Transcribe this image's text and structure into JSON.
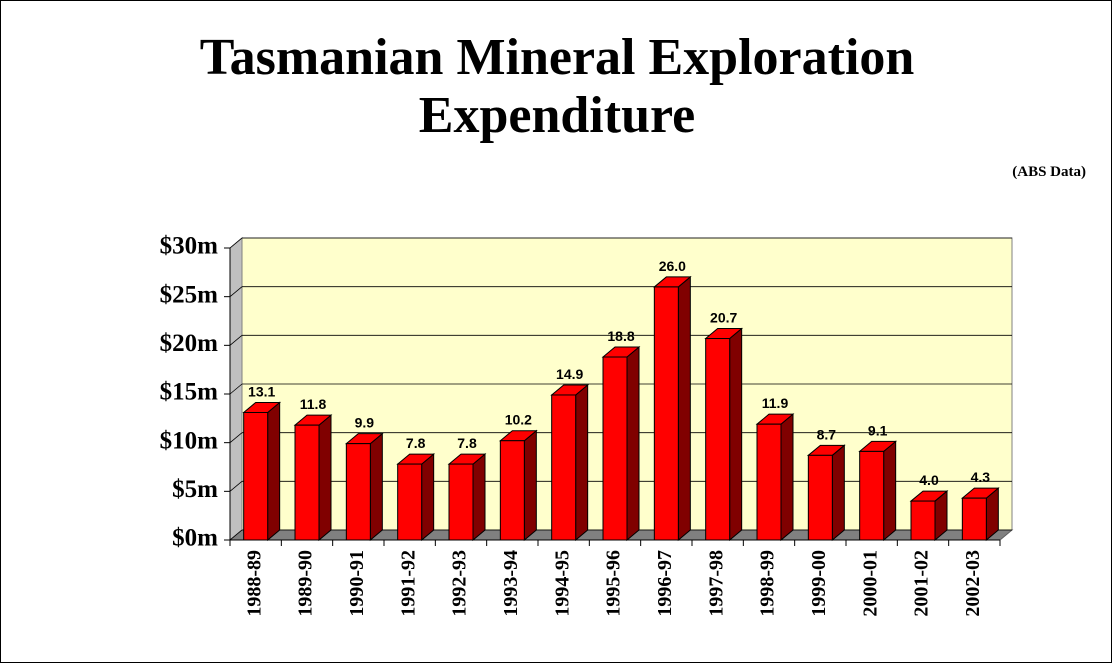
{
  "chart_data": {
    "type": "bar3d",
    "title": "Tasmanian Mineral Exploration Expenditure",
    "subtitle": "(ABS Data)",
    "categories": [
      "1988-89",
      "1989-90",
      "1990-91",
      "1991-92",
      "1992-93",
      "1993-94",
      "1994-95",
      "1995-96",
      "1996-97",
      "1997-98",
      "1998-99",
      "1999-00",
      "2000-01",
      "2001-02",
      "2002-03"
    ],
    "values": [
      13.1,
      11.8,
      9.9,
      7.8,
      7.8,
      10.2,
      14.9,
      18.8,
      26.0,
      20.7,
      11.9,
      8.7,
      9.1,
      4.0,
      4.3
    ],
    "value_labels": [
      "13.1",
      "11.8",
      "9.9",
      "7.8",
      "7.8",
      "10.2",
      "14.9",
      "18.8",
      "26.0",
      "20.7",
      "11.9",
      "8.7",
      "9.1",
      "4.0",
      "4.3"
    ],
    "color": "#ff0000",
    "ylim": [
      0,
      30
    ],
    "yticks": [
      {
        "value": 0,
        "label": "$0m"
      },
      {
        "value": 5,
        "label": "$5m"
      },
      {
        "value": 10,
        "label": "$10m"
      },
      {
        "value": 15,
        "label": "$15m"
      },
      {
        "value": 20,
        "label": "$20m"
      },
      {
        "value": 25,
        "label": "$25m"
      },
      {
        "value": 30,
        "label": "$30m"
      }
    ],
    "grid": true
  }
}
